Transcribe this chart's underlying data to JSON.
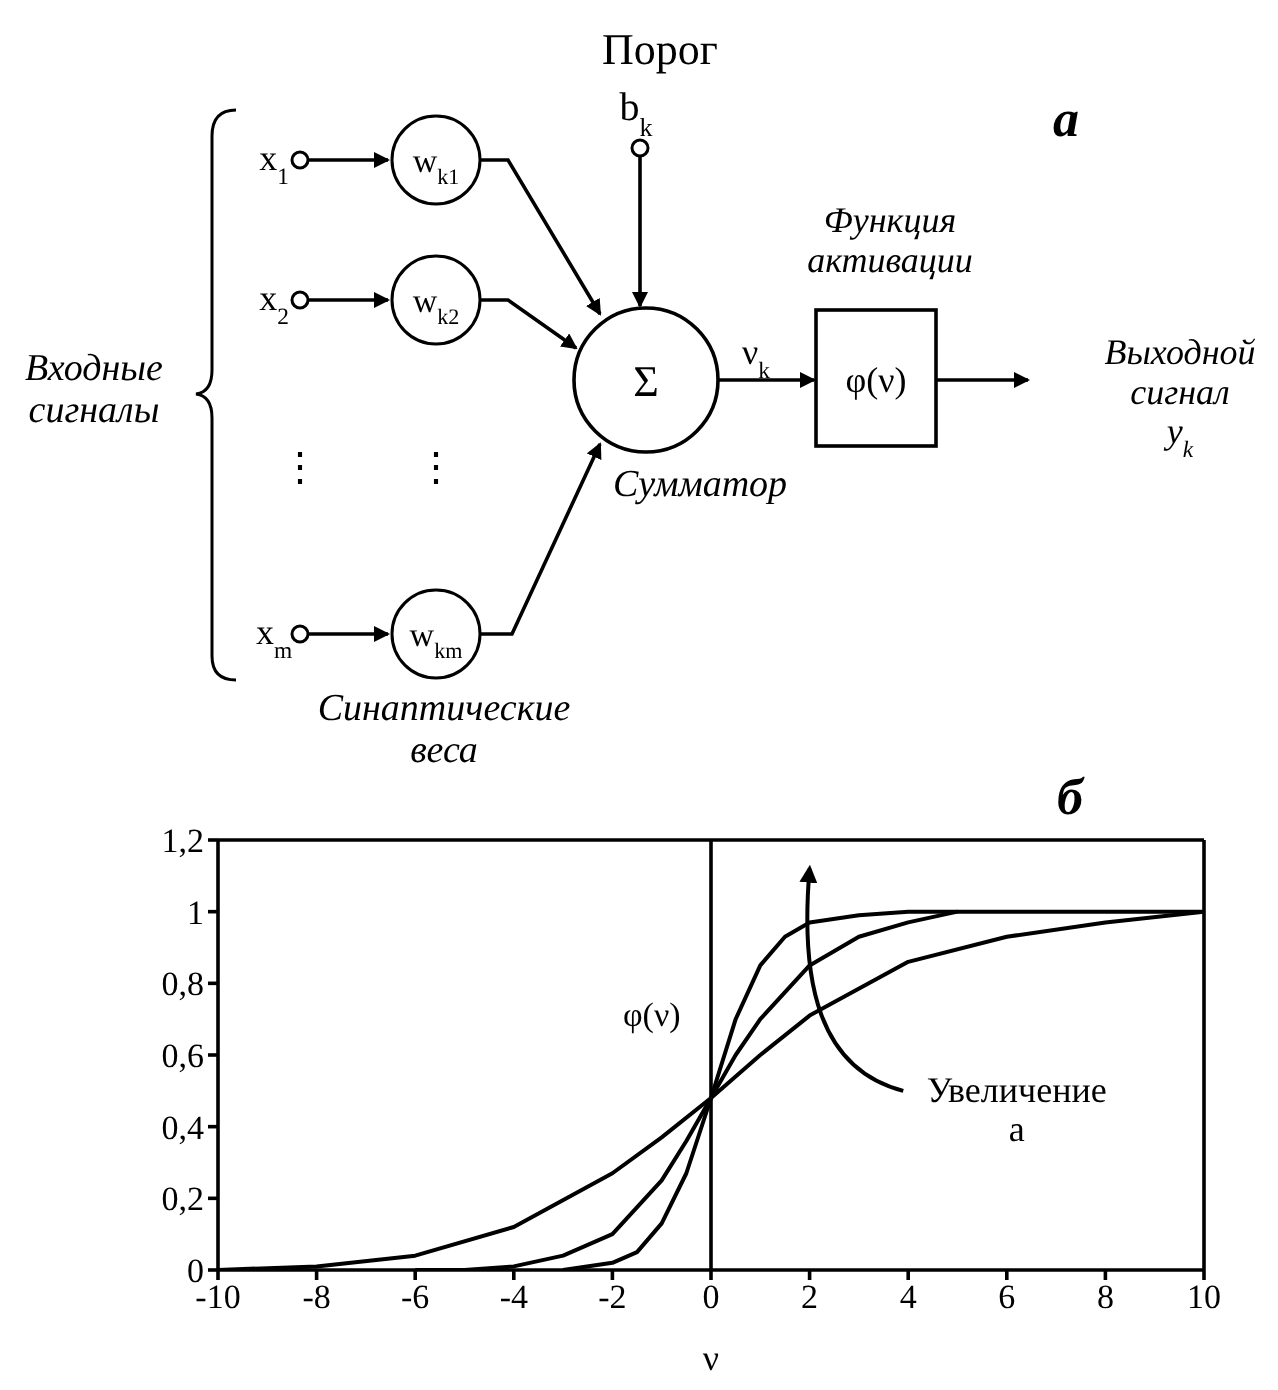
{
  "chart_data": [
    {
      "type": "other",
      "title": "а",
      "annotations": [
        "Порог",
        "b$_{k}$",
        "x$_{1}$",
        "w$_{k1}$",
        "x$_{2}$",
        "w$_{k2}$",
        "⋮",
        "⋮",
        "x$_{m}$",
        "w$_{km}$",
        "Σ",
        "ν$_{k}$",
        "Функция активации",
        "φ(ν)",
        "Выходной сигнал y$_{k}$",
        "Входные сигналы",
        "Сумматор",
        "Синаптические веса"
      ]
    },
    {
      "type": "line",
      "title": "б",
      "xlabel": "ν",
      "ylabel": "φ(ν)",
      "annotations": [
        "Увеличение a"
      ],
      "xlim": [
        -10,
        10
      ],
      "xticks": [
        -10,
        -8,
        -6,
        -4,
        -2,
        0,
        2,
        4,
        6,
        8,
        10
      ],
      "ylim": [
        0,
        1.2
      ],
      "yticks": [
        {
          "value": 0,
          "label": "0"
        },
        {
          "value": 0.2,
          "label": "0,2"
        },
        {
          "value": 0.4,
          "label": "0,4"
        },
        {
          "value": 0.6,
          "label": "0,6"
        },
        {
          "value": 0.8,
          "label": "0,8"
        },
        {
          "value": 1,
          "label": "1"
        },
        {
          "value": 1.2,
          "label": "1,2"
        }
      ],
      "ref_lines": [
        {
          "axis": "x",
          "value": 0,
          "color": "#000000"
        }
      ],
      "marker": "none",
      "line_style": "solid",
      "series": [
        {
          "color": "#000000",
          "x": [
            -10,
            -8,
            -6,
            -4,
            -2,
            -1,
            0,
            1,
            2,
            4,
            6,
            8,
            10
          ],
          "values": [
            0,
            0.01,
            0.04,
            0.12,
            0.27,
            0.37,
            0.48,
            0.6,
            0.71,
            0.86,
            0.93,
            0.97,
            1
          ]
        },
        {
          "color": "#000000",
          "x": [
            -6,
            -5,
            -4,
            -3,
            -2,
            -1,
            -0.5,
            0,
            0.5,
            1,
            2,
            3,
            4,
            5,
            10
          ],
          "values": [
            0,
            0,
            0.01,
            0.04,
            0.1,
            0.25,
            0.36,
            0.48,
            0.6,
            0.7,
            0.85,
            0.93,
            0.97,
            1,
            1
          ]
        },
        {
          "color": "#000000",
          "x": [
            -3,
            -2,
            -1.5,
            -1,
            -0.5,
            0,
            0.5,
            1,
            1.5,
            2,
            3,
            4,
            5
          ],
          "values": [
            0,
            0.02,
            0.05,
            0.13,
            0.27,
            0.48,
            0.7,
            0.85,
            0.93,
            0.97,
            0.99,
            1,
            1
          ]
        }
      ]
    }
  ]
}
